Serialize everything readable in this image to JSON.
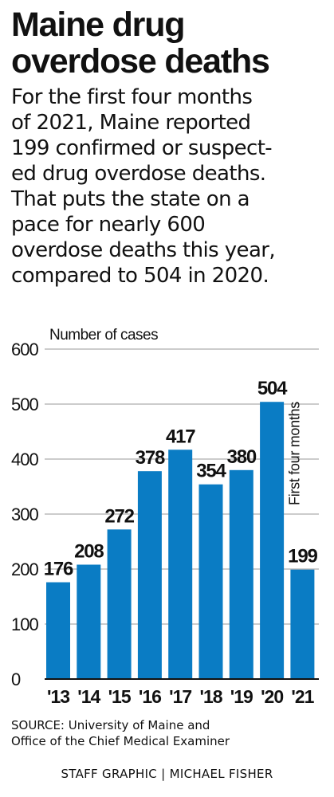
{
  "title": {
    "line1": "Maine drug",
    "line2": "overdose deaths"
  },
  "description": {
    "lines": [
      "For the first four months",
      "of 2021, Maine reported",
      "199 confirmed or suspect-",
      "ed drug overdose deaths.",
      "That puts the state on a",
      "pace for nearly 600",
      "overdose deaths this year,",
      "compared to 504 in 2020."
    ]
  },
  "chart_data": {
    "type": "bar",
    "ylabel": "Number of cases",
    "ylim": [
      0,
      600
    ],
    "yticks": [
      0,
      100,
      200,
      300,
      400,
      500,
      600
    ],
    "categories": [
      "'13",
      "'14",
      "'15",
      "'16",
      "'17",
      "'18",
      "'19",
      "'20",
      "'21"
    ],
    "values": [
      176,
      208,
      272,
      378,
      417,
      354,
      380,
      504,
      199
    ],
    "annotations": [
      {
        "category": "'21",
        "text": "First four months"
      }
    ],
    "grid": true,
    "bar_color": "#0a7cc4"
  },
  "source": {
    "line1": "SOURCE: University of Maine and",
    "line2": "Office of the Chief Medical Examiner"
  },
  "credit": {
    "left": "STAFF GRAPHIC",
    "separator": "|",
    "right": "MICHAEL FISHER"
  }
}
